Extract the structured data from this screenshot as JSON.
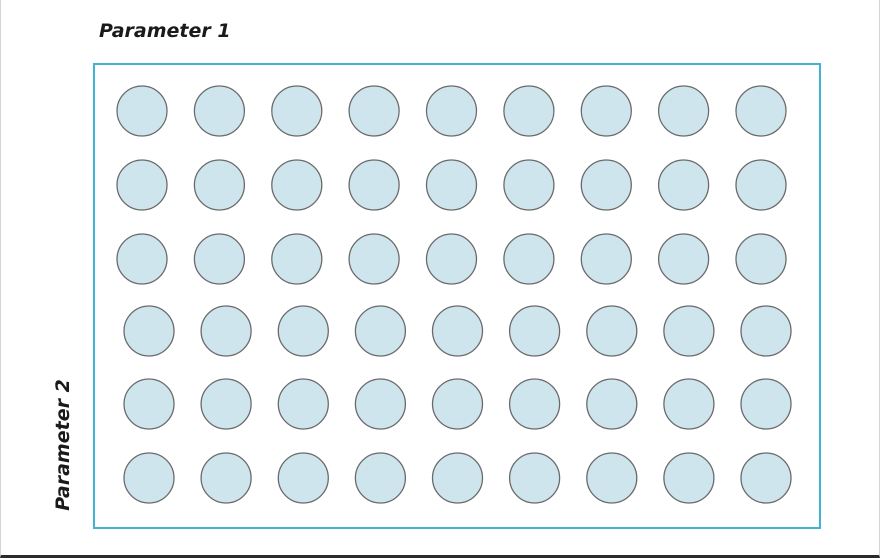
{
  "labels": {
    "parameter_1": "Parameter 1",
    "parameter_2": "Parameter 2"
  },
  "grid": {
    "rows": 6,
    "columns": 9
  },
  "colors": {
    "plate_border": "#3fb3d3",
    "well_fill": "#cfe5ee",
    "well_stroke": "#6a6a6a"
  }
}
